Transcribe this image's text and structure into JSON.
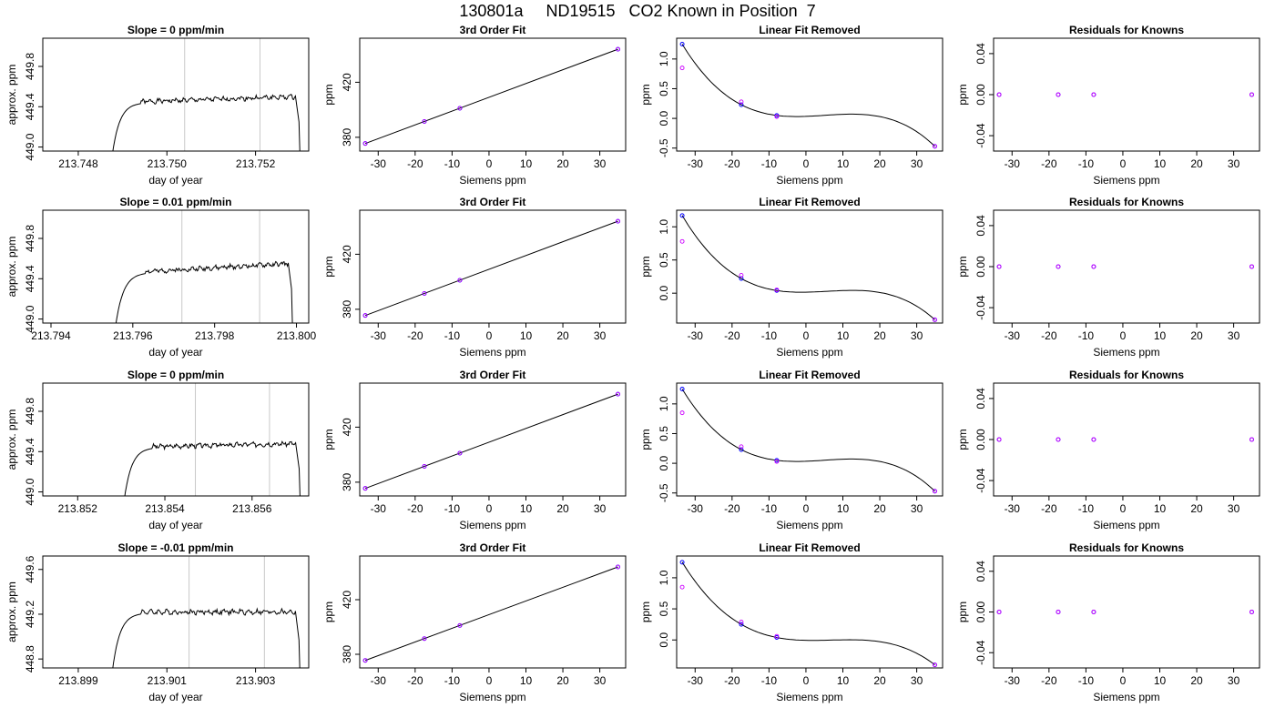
{
  "title": "130801a     ND19515   CO2 Known in Position  7",
  "colors": {
    "frame": "#000000",
    "trace": "#000000",
    "marker_line": "#c8c8c8",
    "measured": "#0000ff",
    "known": "#cc00ff"
  },
  "chart_data": [
    {
      "type": "line",
      "title": "Slope =  0  ppm/min",
      "xlabel": "day of year",
      "ylabel": "approx. ppm",
      "xlim": [
        213.7472,
        213.7532
      ],
      "ylim": [
        448.96,
        450.08
      ],
      "xticks": [
        213.748,
        213.75,
        213.752
      ],
      "xtick_labels": [
        "213.748",
        "213.750",
        "213.752"
      ],
      "yticks": [
        449.0,
        449.4,
        449.8
      ],
      "ytick_labels": [
        "449.0",
        "449.4",
        "449.8"
      ],
      "markers": [
        213.7504,
        213.7521
      ],
      "rise_start": 213.7487,
      "rise_end": 213.749,
      "fall_start": 213.7529,
      "plateau": 449.45,
      "plateau_end": 449.5,
      "seed": 1
    },
    {
      "type": "line",
      "title": "3rd Order Fit",
      "xlabel": "Siemens ppm",
      "ylabel": "ppm",
      "xlim": [
        -35,
        37
      ],
      "ylim": [
        370,
        452
      ],
      "xticks": [
        -30,
        -20,
        -10,
        0,
        10,
        20,
        30
      ],
      "yticks": [
        380,
        420
      ],
      "points": [
        {
          "x": -33.5,
          "y": 375.5
        },
        {
          "x": -17.5,
          "y": 391.5
        },
        {
          "x": -7.9,
          "y": 401.1
        },
        {
          "x": 34.9,
          "y": 444.0
        }
      ],
      "line": [
        [
          -33.5,
          375.5
        ],
        [
          34.9,
          444.0
        ]
      ]
    },
    {
      "type": "scatter",
      "title": "Linear Fit Removed",
      "xlabel": "Siemens ppm",
      "ylabel": "ppm",
      "xlim": [
        -35,
        37
      ],
      "ylim": [
        -0.55,
        1.35
      ],
      "xticks": [
        -30,
        -20,
        -10,
        0,
        10,
        20,
        30
      ],
      "yticks": [
        -0.5,
        0.0,
        0.5,
        1.0
      ],
      "ytick_labels": [
        "-0.5",
        "0.0",
        "0.5",
        "1.0"
      ],
      "measured": [
        {
          "x": -33.5,
          "y": 1.25
        },
        {
          "x": -17.5,
          "y": 0.23
        },
        {
          "x": -7.9,
          "y": 0.05
        },
        {
          "x": 34.9,
          "y": -0.47
        }
      ],
      "known": [
        {
          "x": -33.5,
          "y": 0.85
        },
        {
          "x": -17.5,
          "y": 0.28
        },
        {
          "x": -7.9,
          "y": 0.03
        },
        {
          "x": 34.9,
          "y": -0.47
        }
      ],
      "curve": {
        "xs": [
          -33.5,
          -17.5,
          -7.9,
          34.9
        ],
        "ys": [
          1.25,
          0.23,
          0.05,
          -0.47
        ]
      }
    },
    {
      "type": "scatter",
      "title": "Residuals for Knowns",
      "xlabel": "Siemens ppm",
      "ylabel": "ppm",
      "xlim": [
        -35,
        37
      ],
      "ylim": [
        -0.055,
        0.055
      ],
      "xticks": [
        -30,
        -20,
        -10,
        0,
        10,
        20,
        30
      ],
      "yticks": [
        -0.04,
        0.0,
        0.04
      ],
      "ytick_labels": [
        "-0.04",
        "0.00",
        "0.04"
      ],
      "measured": [
        {
          "x": -33.5,
          "y": 0
        },
        {
          "x": -17.5,
          "y": 0
        },
        {
          "x": -7.9,
          "y": 0
        },
        {
          "x": 34.9,
          "y": 0
        }
      ],
      "known": [
        {
          "x": -33.5,
          "y": 0
        },
        {
          "x": -17.5,
          "y": 0
        },
        {
          "x": -7.9,
          "y": 0
        },
        {
          "x": 34.9,
          "y": 0
        }
      ]
    },
    {
      "type": "line",
      "title": "Slope =  0.01  ppm/min",
      "xlabel": "day of year",
      "ylabel": "approx. ppm",
      "xlim": [
        213.7938,
        213.8003
      ],
      "ylim": [
        448.96,
        450.08
      ],
      "xticks": [
        213.794,
        213.796,
        213.798,
        213.8
      ],
      "xtick_labels": [
        "213.794",
        "213.796",
        "213.798",
        "213.800"
      ],
      "yticks": [
        449.0,
        449.4,
        449.8
      ],
      "ytick_labels": [
        "449.0",
        "449.4",
        "449.8"
      ],
      "markers": [
        213.7972,
        213.7991
      ],
      "rise_start": 213.7955,
      "rise_end": 213.7959,
      "fall_start": 213.7998,
      "plateau": 449.47,
      "plateau_end": 449.55,
      "seed": 2
    },
    {
      "type": "line",
      "title": "3rd Order Fit",
      "xlabel": "Siemens ppm",
      "ylabel": "ppm",
      "xlim": [
        -35,
        37
      ],
      "ylim": [
        370,
        452
      ],
      "xticks": [
        -30,
        -20,
        -10,
        0,
        10,
        20,
        30
      ],
      "yticks": [
        380,
        420
      ],
      "points": [
        {
          "x": -33.5,
          "y": 375.5
        },
        {
          "x": -17.5,
          "y": 391.5
        },
        {
          "x": -7.9,
          "y": 401.1
        },
        {
          "x": 34.9,
          "y": 444.0
        }
      ],
      "line": [
        [
          -33.5,
          375.5
        ],
        [
          34.9,
          444.0
        ]
      ]
    },
    {
      "type": "scatter",
      "title": "Linear Fit Removed",
      "xlabel": "Siemens ppm",
      "ylabel": "ppm",
      "xlim": [
        -35,
        37
      ],
      "ylim": [
        -0.45,
        1.25
      ],
      "xticks": [
        -30,
        -20,
        -10,
        0,
        10,
        20,
        30
      ],
      "yticks": [
        0.0,
        0.5,
        1.0
      ],
      "ytick_labels": [
        "0.0",
        "0.5",
        "1.0"
      ],
      "measured": [
        {
          "x": -33.5,
          "y": 1.17
        },
        {
          "x": -17.5,
          "y": 0.22
        },
        {
          "x": -7.9,
          "y": 0.04
        },
        {
          "x": 34.9,
          "y": -0.4
        }
      ],
      "known": [
        {
          "x": -33.5,
          "y": 0.78
        },
        {
          "x": -17.5,
          "y": 0.27
        },
        {
          "x": -7.9,
          "y": 0.05
        },
        {
          "x": 34.9,
          "y": -0.4
        }
      ],
      "curve": {
        "xs": [
          -33.5,
          -17.5,
          -7.9,
          34.9
        ],
        "ys": [
          1.17,
          0.22,
          0.04,
          -0.4
        ]
      }
    },
    {
      "type": "scatter",
      "title": "Residuals for Knowns",
      "xlabel": "Siemens ppm",
      "ylabel": "ppm",
      "xlim": [
        -35,
        37
      ],
      "ylim": [
        -0.055,
        0.055
      ],
      "xticks": [
        -30,
        -20,
        -10,
        0,
        10,
        20,
        30
      ],
      "yticks": [
        -0.04,
        0.0,
        0.04
      ],
      "ytick_labels": [
        "-0.04",
        "0.00",
        "0.04"
      ],
      "measured": [
        {
          "x": -33.5,
          "y": 0
        },
        {
          "x": -17.5,
          "y": 0
        },
        {
          "x": -7.9,
          "y": 0
        },
        {
          "x": 34.9,
          "y": 0
        }
      ],
      "known": [
        {
          "x": -33.5,
          "y": 0
        },
        {
          "x": -17.5,
          "y": 0
        },
        {
          "x": -7.9,
          "y": 0
        },
        {
          "x": 34.9,
          "y": 0
        }
      ]
    },
    {
      "type": "line",
      "title": "Slope =  0  ppm/min",
      "xlabel": "day of year",
      "ylabel": "approx. ppm",
      "xlim": [
        213.8512,
        213.8573
      ],
      "ylim": [
        448.96,
        450.08
      ],
      "xticks": [
        213.852,
        213.854,
        213.856
      ],
      "xtick_labels": [
        "213.852",
        "213.854",
        "213.856"
      ],
      "yticks": [
        449.0,
        449.4,
        449.8
      ],
      "ytick_labels": [
        "449.0",
        "449.4",
        "449.8"
      ],
      "markers": [
        213.8547,
        213.8564
      ],
      "rise_start": 213.853,
      "rise_end": 213.8533,
      "fall_start": 213.857,
      "plateau": 449.45,
      "plateau_end": 449.48,
      "seed": 3
    },
    {
      "type": "line",
      "title": "3rd Order Fit",
      "xlabel": "Siemens ppm",
      "ylabel": "ppm",
      "xlim": [
        -35,
        37
      ],
      "ylim": [
        370,
        452
      ],
      "xticks": [
        -30,
        -20,
        -10,
        0,
        10,
        20,
        30
      ],
      "yticks": [
        380,
        420
      ],
      "points": [
        {
          "x": -33.5,
          "y": 375.5
        },
        {
          "x": -17.5,
          "y": 391.5
        },
        {
          "x": -7.9,
          "y": 401.1
        },
        {
          "x": 34.9,
          "y": 444.0
        }
      ],
      "line": [
        [
          -33.5,
          375.5
        ],
        [
          34.9,
          444.0
        ]
      ]
    },
    {
      "type": "scatter",
      "title": "Linear Fit Removed",
      "xlabel": "Siemens ppm",
      "ylabel": "ppm",
      "xlim": [
        -35,
        37
      ],
      "ylim": [
        -0.55,
        1.35
      ],
      "xticks": [
        -30,
        -20,
        -10,
        0,
        10,
        20,
        30
      ],
      "yticks": [
        -0.5,
        0.0,
        0.5,
        1.0
      ],
      "ytick_labels": [
        "-0.5",
        "0.0",
        "0.5",
        "1.0"
      ],
      "measured": [
        {
          "x": -33.5,
          "y": 1.25
        },
        {
          "x": -17.5,
          "y": 0.23
        },
        {
          "x": -7.9,
          "y": 0.05
        },
        {
          "x": 34.9,
          "y": -0.47
        }
      ],
      "known": [
        {
          "x": -33.5,
          "y": 0.85
        },
        {
          "x": -17.5,
          "y": 0.28
        },
        {
          "x": -7.9,
          "y": 0.03
        },
        {
          "x": 34.9,
          "y": -0.47
        }
      ],
      "curve": {
        "xs": [
          -33.5,
          -17.5,
          -7.9,
          34.9
        ],
        "ys": [
          1.25,
          0.23,
          0.05,
          -0.47
        ]
      }
    },
    {
      "type": "scatter",
      "title": "Residuals for Knowns",
      "xlabel": "Siemens ppm",
      "ylabel": "ppm",
      "xlim": [
        -35,
        37
      ],
      "ylim": [
        -0.055,
        0.055
      ],
      "xticks": [
        -30,
        -20,
        -10,
        0,
        10,
        20,
        30
      ],
      "yticks": [
        -0.04,
        0.0,
        0.04
      ],
      "ytick_labels": [
        "-0.04",
        "0.00",
        "0.04"
      ],
      "measured": [
        {
          "x": -33.5,
          "y": 0
        },
        {
          "x": -17.5,
          "y": 0
        },
        {
          "x": -7.9,
          "y": 0
        },
        {
          "x": 34.9,
          "y": 0
        }
      ],
      "known": [
        {
          "x": -33.5,
          "y": 0
        },
        {
          "x": -17.5,
          "y": 0
        },
        {
          "x": -7.9,
          "y": 0
        },
        {
          "x": 34.9,
          "y": 0
        }
      ]
    },
    {
      "type": "line",
      "title": "Slope =  -0.01  ppm/min",
      "xlabel": "day of year",
      "ylabel": "approx. ppm",
      "xlim": [
        213.8982,
        213.9042
      ],
      "ylim": [
        448.72,
        449.72
      ],
      "xticks": [
        213.899,
        213.901,
        213.903
      ],
      "xtick_labels": [
        "213.899",
        "213.901",
        "213.903"
      ],
      "yticks": [
        448.8,
        449.2,
        449.6
      ],
      "ytick_labels": [
        "448.8",
        "449.2",
        "449.6"
      ],
      "markers": [
        213.9015,
        213.9032
      ],
      "rise_start": 213.8997,
      "rise_end": 213.9,
      "fall_start": 213.9039,
      "plateau": 449.22,
      "plateau_end": 449.22,
      "seed": 4
    },
    {
      "type": "line",
      "title": "3rd Order Fit",
      "xlabel": "Siemens ppm",
      "ylabel": "ppm",
      "xlim": [
        -35,
        37
      ],
      "ylim": [
        370,
        452
      ],
      "xticks": [
        -30,
        -20,
        -10,
        0,
        10,
        20,
        30
      ],
      "yticks": [
        380,
        420
      ],
      "points": [
        {
          "x": -33.5,
          "y": 375.5
        },
        {
          "x": -17.5,
          "y": 391.5
        },
        {
          "x": -7.9,
          "y": 401.1
        },
        {
          "x": 34.9,
          "y": 444.0
        }
      ],
      "line": [
        [
          -33.5,
          375.5
        ],
        [
          34.9,
          444.0
        ]
      ]
    },
    {
      "type": "scatter",
      "title": "Linear Fit Removed",
      "xlabel": "Siemens ppm",
      "ylabel": "ppm",
      "xlim": [
        -35,
        37
      ],
      "ylim": [
        -0.45,
        1.35
      ],
      "xticks": [
        -30,
        -20,
        -10,
        0,
        10,
        20,
        30
      ],
      "yticks": [
        0.0,
        0.5,
        1.0
      ],
      "ytick_labels": [
        "0.0",
        "0.5",
        "1.0"
      ],
      "measured": [
        {
          "x": -33.5,
          "y": 1.25
        },
        {
          "x": -17.5,
          "y": 0.25
        },
        {
          "x": -7.9,
          "y": 0.04
        },
        {
          "x": 34.9,
          "y": -0.4
        }
      ],
      "known": [
        {
          "x": -33.5,
          "y": 0.85
        },
        {
          "x": -17.5,
          "y": 0.29
        },
        {
          "x": -7.9,
          "y": 0.06
        },
        {
          "x": 34.9,
          "y": -0.4
        }
      ],
      "curve": {
        "xs": [
          -33.5,
          -17.5,
          -7.9,
          34.9
        ],
        "ys": [
          1.25,
          0.25,
          0.04,
          -0.4
        ]
      }
    },
    {
      "type": "scatter",
      "title": "Residuals for Knowns",
      "xlabel": "Siemens ppm",
      "ylabel": "ppm",
      "xlim": [
        -35,
        37
      ],
      "ylim": [
        -0.055,
        0.055
      ],
      "xticks": [
        -30,
        -20,
        -10,
        0,
        10,
        20,
        30
      ],
      "yticks": [
        -0.04,
        0.0,
        0.04
      ],
      "ytick_labels": [
        "-0.04",
        "0.00",
        "0.04"
      ],
      "measured": [
        {
          "x": -33.5,
          "y": 0
        },
        {
          "x": -17.5,
          "y": 0
        },
        {
          "x": -7.9,
          "y": 0
        },
        {
          "x": 34.9,
          "y": 0
        }
      ],
      "known": [
        {
          "x": -33.5,
          "y": 0
        },
        {
          "x": -17.5,
          "y": 0
        },
        {
          "x": -7.9,
          "y": 0
        },
        {
          "x": 34.9,
          "y": 0
        }
      ]
    }
  ]
}
